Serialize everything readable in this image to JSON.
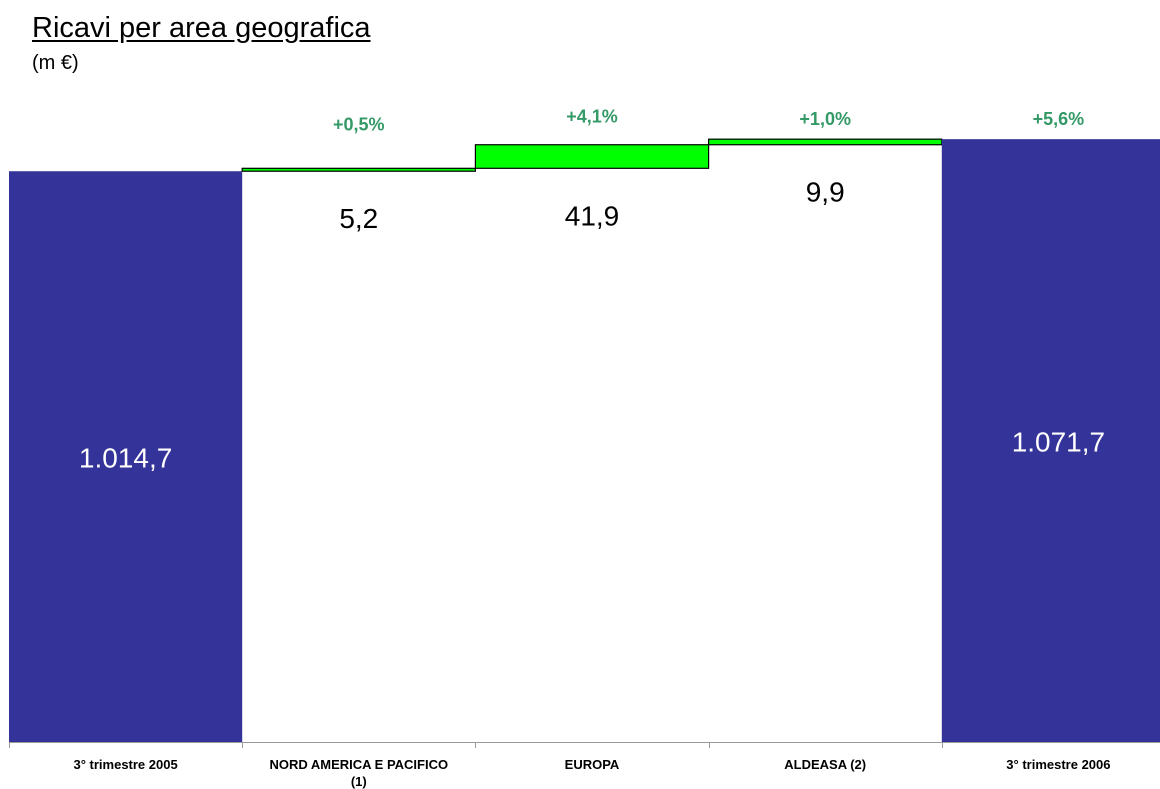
{
  "chart_data": {
    "type": "bar",
    "subtype": "waterfall",
    "title": "Ricavi per area geografica",
    "subtitle": "(m €)",
    "categories": [
      "3° trimestre 2005",
      "NORD AMERICA E PACIFICO (1)",
      "EUROPA",
      "ALDEASA (2)",
      "3° trimestre 2006"
    ],
    "category_labels": [
      [
        "3° trimestre 2005"
      ],
      [
        "NORD AMERICA E PACIFICO",
        "(1)"
      ],
      [
        "EUROPA"
      ],
      [
        "ALDEASA (2)"
      ],
      [
        "3° trimestre 2006"
      ]
    ],
    "values": [
      1014.7,
      5.2,
      41.9,
      9.9,
      1071.7
    ],
    "bar_kinds": [
      "total",
      "delta",
      "delta",
      "delta",
      "total"
    ],
    "value_labels": [
      "1.014,7",
      "5,2",
      "41,9",
      "9,9",
      "1.071,7"
    ],
    "percent_labels": [
      "",
      "+0,5%",
      "+4,1%",
      "+1,0%",
      "+5,6%"
    ],
    "ylim": [
      0,
      1090
    ],
    "xlabel": "",
    "ylabel": "",
    "grid": false,
    "legend": "none",
    "colors": {
      "total": "#333399",
      "delta": "#00ff00",
      "percent_text": "#339966",
      "total_label": "#ffffff",
      "delta_label": "#000000",
      "axis": "#999999"
    }
  }
}
